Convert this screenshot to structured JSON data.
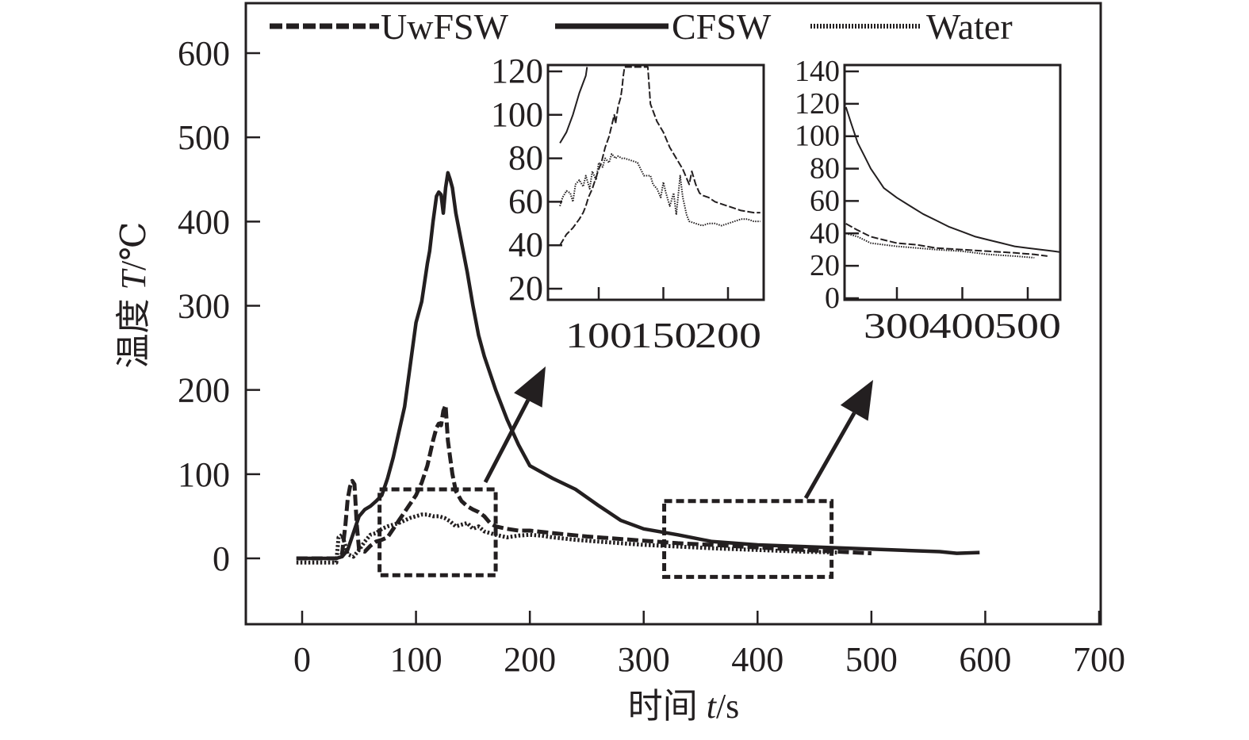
{
  "chart_data": {
    "type": "line",
    "title": "",
    "xlabel": "时间 t/s",
    "xlabel_parts": {
      "cn": "时间 ",
      "var": "t",
      "unit": "/s"
    },
    "ylabel": "温度 T/℃",
    "ylabel_parts": {
      "cn": "温度 ",
      "var": "T",
      "unit": "/℃"
    },
    "xlim": [
      -50,
      700
    ],
    "ylim": [
      -80,
      650
    ],
    "xticks": [
      0,
      100,
      200,
      300,
      400,
      500,
      600,
      700
    ],
    "xtick_labels": [
      "0",
      "100",
      "200",
      "300",
      "400",
      "500",
      "600",
      "700"
    ],
    "yticks": [
      0,
      100,
      200,
      300,
      400,
      500,
      600
    ],
    "ytick_labels": [
      "0",
      "100",
      "200",
      "300",
      "400",
      "500",
      "600"
    ],
    "grid": false,
    "legend": {
      "placement": "top",
      "entries": [
        {
          "name": "UwFSW",
          "style": "dashed"
        },
        {
          "name": "CFSW",
          "style": "solid"
        },
        {
          "name": "Water",
          "style": "dotted"
        }
      ]
    },
    "color": "#231f20",
    "series": [
      {
        "name": "UwFSW",
        "style": "dashed",
        "x": [
          -5,
          30,
          35,
          38,
          40,
          42,
          44,
          46,
          48,
          50,
          55,
          60,
          65,
          70,
          75,
          80,
          85,
          90,
          95,
          100,
          105,
          110,
          115,
          118,
          120,
          122,
          124,
          126,
          128,
          130,
          132,
          135,
          140,
          145,
          150,
          155,
          160,
          165,
          170,
          180,
          190,
          200,
          220,
          250,
          280,
          300,
          330,
          360,
          400,
          440,
          470,
          500
        ],
        "y": [
          0,
          0,
          5,
          40,
          70,
          85,
          92,
          88,
          40,
          10,
          8,
          15,
          20,
          22,
          25,
          35,
          45,
          55,
          65,
          75,
          90,
          110,
          140,
          155,
          160,
          158,
          175,
          182,
          140,
          120,
          100,
          80,
          68,
          62,
          58,
          55,
          50,
          42,
          38,
          35,
          33,
          33,
          30,
          26,
          23,
          21,
          18,
          16,
          13,
          10,
          8,
          6
        ]
      },
      {
        "name": "CFSW",
        "style": "solid",
        "x": [
          -5,
          30,
          35,
          40,
          45,
          50,
          55,
          60,
          65,
          70,
          75,
          80,
          85,
          90,
          95,
          100,
          105,
          110,
          112,
          115,
          118,
          120,
          122,
          124,
          126,
          128,
          130,
          132,
          135,
          140,
          145,
          150,
          155,
          160,
          170,
          180,
          190,
          200,
          220,
          240,
          260,
          280,
          300,
          330,
          360,
          400,
          440,
          480,
          520,
          560,
          575,
          595
        ],
        "y": [
          0,
          0,
          2,
          10,
          30,
          50,
          58,
          62,
          68,
          75,
          95,
          120,
          150,
          180,
          230,
          280,
          305,
          350,
          365,
          400,
          430,
          435,
          432,
          410,
          440,
          458,
          450,
          440,
          410,
          375,
          340,
          300,
          265,
          240,
          200,
          165,
          135,
          110,
          95,
          82,
          63,
          45,
          35,
          28,
          20,
          16,
          14,
          12,
          10,
          8,
          6,
          7
        ]
      },
      {
        "name": "Water",
        "style": "dotted",
        "x": [
          -5,
          30,
          32,
          35,
          38,
          40,
          45,
          50,
          55,
          60,
          65,
          70,
          75,
          80,
          85,
          90,
          95,
          100,
          105,
          110,
          115,
          120,
          125,
          130,
          135,
          140,
          145,
          150,
          155,
          160,
          170,
          180,
          190,
          200,
          210,
          220,
          240,
          260,
          280,
          300,
          330,
          360,
          400,
          440,
          470
        ],
        "y": [
          -5,
          -5,
          25,
          28,
          15,
          5,
          2,
          10,
          20,
          28,
          30,
          35,
          38,
          40,
          42,
          45,
          48,
          50,
          52,
          52,
          50,
          50,
          48,
          44,
          38,
          40,
          42,
          35,
          38,
          32,
          28,
          25,
          27,
          28,
          27,
          25,
          22,
          20,
          18,
          16,
          14,
          12,
          10,
          8,
          7
        ]
      }
    ],
    "zoom_boxes": [
      {
        "x_range": [
          68,
          170
        ],
        "y_range": [
          -20,
          82
        ]
      },
      {
        "x_range": [
          318,
          465
        ],
        "y_range": [
          -22,
          68
        ]
      }
    ],
    "insets": [
      {
        "name": "inset-early",
        "xlim": [
          70,
          227
        ],
        "ylim": [
          10,
          120
        ],
        "xticks": [
          100,
          150,
          200
        ],
        "xtick_labels": [
          "100",
          "150",
          "200"
        ],
        "yticks": [
          20,
          40,
          60,
          80,
          100,
          120
        ],
        "ytick_labels": [
          "20",
          "40",
          "60",
          "80",
          "100",
          "120"
        ],
        "series": [
          {
            "name": "CFSW",
            "style": "solid",
            "x": [
              70,
              75,
              80,
              85,
              90,
              91
            ],
            "y": [
              87,
              92,
              100,
              110,
              118,
              122
            ]
          },
          {
            "name": "UwFSW",
            "style": "dashed",
            "x": [
              70,
              75,
              80,
              85,
              88,
              90,
              92,
              95,
              100,
              102,
              105,
              108,
              110,
              112,
              113,
              115,
              117,
              118,
              119,
              120,
              138,
              140,
              145,
              150,
              155,
              160,
              165,
              170,
              172,
              175,
              178,
              180,
              185,
              190,
              200,
              210,
              220,
              225
            ],
            "y": [
              40,
              45,
              48,
              52,
              55,
              58,
              62,
              66,
              75,
              78,
              85,
              90,
              95,
              100,
              96,
              104,
              108,
              112,
              118,
              122,
              122,
              105,
              97,
              92,
              85,
              80,
              75,
              68,
              74,
              68,
              64,
              63,
              62,
              60,
              58,
              56,
              55,
              55
            ]
          },
          {
            "name": "Water",
            "style": "dotted",
            "x": [
              70,
              72,
              75,
              78,
              80,
              82,
              85,
              88,
              90,
              93,
              95,
              98,
              100,
              103,
              105,
              108,
              110,
              113,
              115,
              118,
              120,
              125,
              130,
              135,
              140,
              142,
              145,
              148,
              150,
              152,
              155,
              158,
              160,
              163,
              165,
              168,
              170,
              175,
              180,
              185,
              190,
              195,
              200,
              205,
              210,
              215,
              220,
              225
            ],
            "y": [
              58,
              62,
              65,
              64,
              60,
              68,
              70,
              67,
              72,
              66,
              74,
              70,
              78,
              76,
              80,
              78,
              82,
              80,
              81,
              80,
              80,
              79,
              78,
              72,
              72,
              68,
              66,
              62,
              69,
              64,
              58,
              64,
              54,
              72,
              62,
              54,
              51,
              50,
              49,
              50,
              50,
              49,
              50,
              51,
              52,
              52,
              51,
              51
            ]
          }
        ]
      },
      {
        "name": "inset-late",
        "xlim": [
          220,
          560
        ],
        "ylim": [
          0,
          145
        ],
        "xticks": [
          300,
          400,
          500
        ],
        "xtick_labels": [
          "300",
          "400",
          "500"
        ],
        "yticks": [
          0,
          20,
          40,
          60,
          80,
          100,
          120,
          140
        ],
        "ytick_labels": [
          "0",
          "20",
          "40",
          "60",
          "80",
          "100",
          "120",
          "140"
        ],
        "series": [
          {
            "name": "CFSW",
            "style": "solid",
            "x": [
              222,
              230,
              240,
              250,
              260,
              270,
              280,
              300,
              320,
              340,
              360,
              380,
              400,
              420,
              440,
              460,
              480,
              500,
              520,
              540,
              558
            ],
            "y": [
              118,
              108,
              96,
              88,
              80,
              74,
              68,
              62,
              57,
              52,
              48,
              44,
              41,
              38,
              36,
              34,
              32,
              31,
              30,
              29,
              28
            ]
          },
          {
            "name": "UwFSW",
            "style": "dashed",
            "x": [
              222,
              240,
              260,
              280,
              300,
              330,
              360,
              400,
              440,
              480,
              510,
              530
            ],
            "y": [
              46,
              42,
              38,
              36,
              34,
              33,
              31,
              30,
              29,
              28,
              27,
              26
            ]
          },
          {
            "name": "Water",
            "style": "dotted",
            "x": [
              222,
              240,
              260,
              280,
              300,
              330,
              360,
              400,
              440,
              480,
              510
            ],
            "y": [
              40,
              38,
              34,
              33,
              32,
              31,
              30,
              29,
              27,
              26,
              25
            ]
          }
        ]
      }
    ]
  }
}
